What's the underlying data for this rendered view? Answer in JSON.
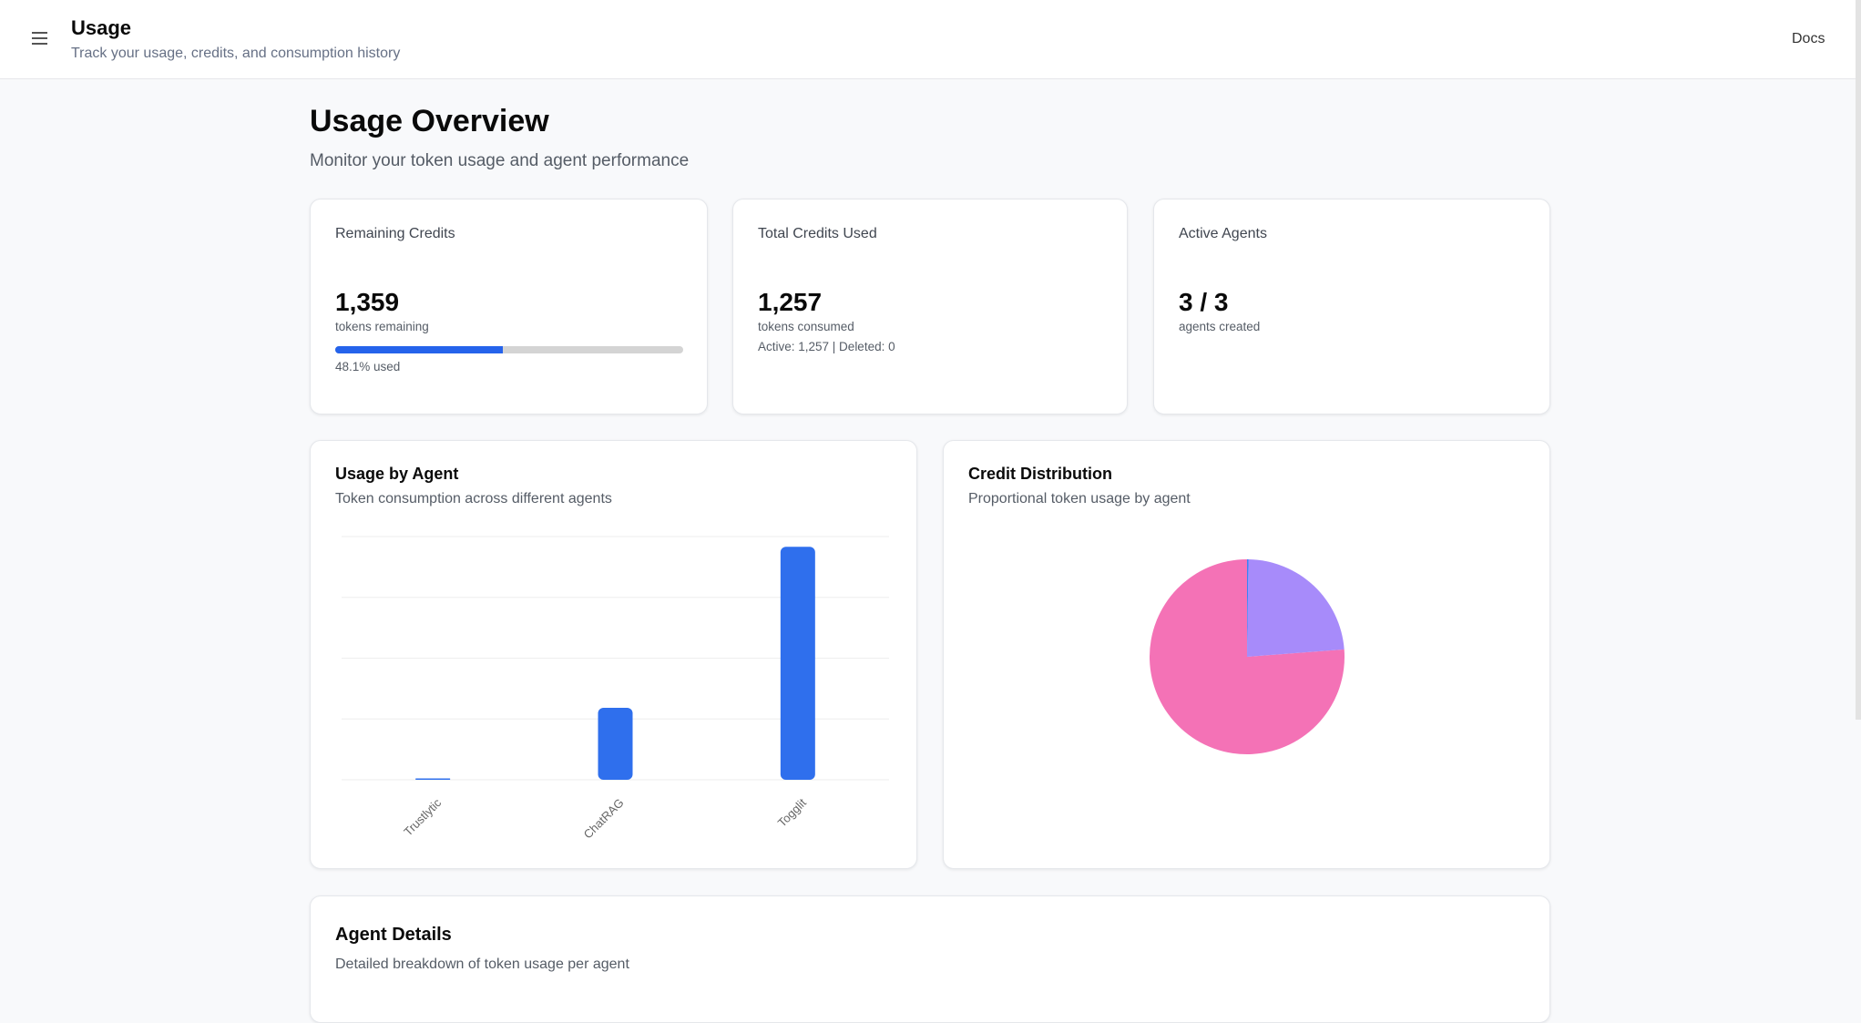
{
  "header": {
    "title": "Usage",
    "subtitle": "Track your usage, credits, and consumption history",
    "docs_label": "Docs",
    "menu_icon": "hamburger-icon"
  },
  "overview": {
    "title": "Usage Overview",
    "subtitle": "Monitor your token usage and agent performance"
  },
  "stats": {
    "remaining": {
      "label": "Remaining Credits",
      "value": "1,359",
      "caption": "tokens remaining",
      "used_percent": 48.1,
      "used_label": "48.1% used"
    },
    "total": {
      "label": "Total Credits Used",
      "value": "1,257",
      "caption": "tokens consumed",
      "breakdown": "Active: 1,257 | Deleted: 0"
    },
    "agents": {
      "label": "Active Agents",
      "value": "3 / 3",
      "caption": "agents created"
    }
  },
  "usage_chart": {
    "title": "Usage by Agent",
    "subtitle": "Token consumption across different agents"
  },
  "distribution_chart": {
    "title": "Credit Distribution",
    "subtitle": "Proportional token usage by agent"
  },
  "details": {
    "title": "Agent Details",
    "subtitle": "Detailed breakdown of token usage per agent"
  },
  "chart_data": [
    {
      "type": "bar",
      "categories": [
        "Trustlytic",
        "ChatRAG",
        "Togglit"
      ],
      "values": [
        3,
        296,
        958
      ],
      "ylim": [
        0,
        1000
      ],
      "grid": true,
      "color": "#2f6fed"
    },
    {
      "type": "pie",
      "categories": [
        "Togglit",
        "ChatRAG",
        "Trustlytic"
      ],
      "values": [
        958,
        296,
        3
      ],
      "colors": [
        "#f472b6",
        "#a78bfa",
        "#3b82f6"
      ]
    }
  ]
}
